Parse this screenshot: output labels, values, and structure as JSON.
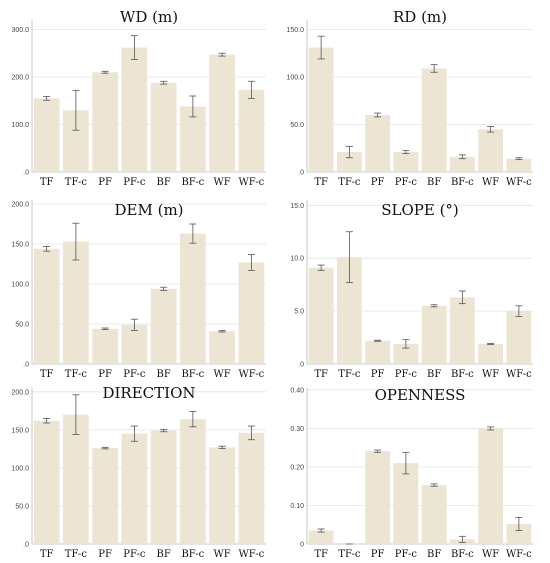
{
  "colors": {
    "bar": "#ede5d3",
    "error_bar": "#555555",
    "grid": "#e4e4e4"
  },
  "chart_data": [
    {
      "type": "bar",
      "title": "WD (m)",
      "categories": [
        "TF",
        "TF-c",
        "PF",
        "PF-c",
        "BF",
        "BF-c",
        "WF",
        "WF-c"
      ],
      "values": [
        155,
        130,
        210,
        262,
        188,
        138,
        247,
        173
      ],
      "errors": [
        4,
        42,
        2,
        25,
        3,
        22,
        3,
        18
      ],
      "ylim": [
        0,
        320
      ],
      "yticks": [
        0,
        100,
        200,
        300
      ],
      "ytick_labels": [
        ".0",
        "100.0",
        "200.0",
        "300.0"
      ],
      "grid": true
    },
    {
      "type": "bar",
      "title": "RD (m)",
      "categories": [
        "TF",
        "TF-c",
        "PF",
        "PF-c",
        "BF",
        "BF-c",
        "WF",
        "WF-c"
      ],
      "values": [
        131,
        21,
        60,
        21,
        109,
        16,
        45,
        14
      ],
      "errors": [
        12,
        6,
        2,
        1.5,
        4,
        2,
        3,
        1
      ],
      "ylim": [
        0,
        160
      ],
      "yticks": [
        0,
        50,
        100,
        150
      ],
      "ytick_labels": [
        ".0",
        "50.0",
        "100.0",
        "150.0"
      ],
      "grid": true
    },
    {
      "type": "bar",
      "title": "DEM (m)",
      "categories": [
        "TF",
        "TF-c",
        "PF",
        "PF-c",
        "BF",
        "BF-c",
        "WF",
        "WF-c"
      ],
      "values": [
        144,
        153,
        44,
        49,
        94,
        163,
        41,
        127
      ],
      "errors": [
        3,
        23,
        1,
        7,
        2,
        12,
        1,
        10
      ],
      "ylim": [
        0,
        205
      ],
      "yticks": [
        0,
        50,
        100,
        150,
        200
      ],
      "ytick_labels": [
        ".0",
        "50.0",
        "100.0",
        "150.0",
        "200.0"
      ],
      "grid": true
    },
    {
      "type": "bar",
      "title": "SLOPE (°)",
      "categories": [
        "TF",
        "TF-c",
        "PF",
        "PF-c",
        "BF",
        "BF-c",
        "WF",
        "WF-c"
      ],
      "values": [
        9.1,
        10.1,
        2.2,
        1.9,
        5.5,
        6.3,
        1.9,
        5.0
      ],
      "errors": [
        0.25,
        2.4,
        0.05,
        0.4,
        0.1,
        0.6,
        0.05,
        0.5
      ],
      "ylim": [
        0,
        15.5
      ],
      "yticks": [
        0,
        5,
        10,
        15
      ],
      "ytick_labels": [
        ".0",
        "5.0",
        "10.0",
        "15.0"
      ],
      "grid": true
    },
    {
      "type": "bar",
      "title": "DIRECTION",
      "categories": [
        "TF",
        "TF-c",
        "PF",
        "PF-c",
        "BF",
        "BF-c",
        "WF",
        "WF-c"
      ],
      "values": [
        162,
        170,
        126,
        145,
        149,
        164,
        127,
        146
      ],
      "errors": [
        3,
        26,
        1,
        10,
        1.5,
        10,
        1.5,
        9
      ],
      "ylim": [
        0,
        205
      ],
      "yticks": [
        0,
        50,
        100,
        150,
        200
      ],
      "ytick_labels": [
        ".0",
        "50.0",
        "100.0",
        "150.0",
        "200.0"
      ],
      "grid": true
    },
    {
      "type": "bar",
      "title": "OPENNESS",
      "categories": [
        "TF",
        "TF-c",
        "PF",
        "PF-c",
        "BF",
        "BF-c",
        "WF",
        "WF-c"
      ],
      "values": [
        0.035,
        0.0,
        0.241,
        0.21,
        0.153,
        0.012,
        0.3,
        0.052
      ],
      "errors": [
        0.004,
        0.0,
        0.003,
        0.028,
        0.003,
        0.008,
        0.004,
        0.017
      ],
      "ylim": [
        0,
        0.405
      ],
      "yticks": [
        0,
        0.1,
        0.2,
        0.3,
        0.4
      ],
      "ytick_labels": [
        "0",
        "0.10",
        "0.20",
        "0.30",
        "0.40"
      ],
      "grid": true
    }
  ]
}
